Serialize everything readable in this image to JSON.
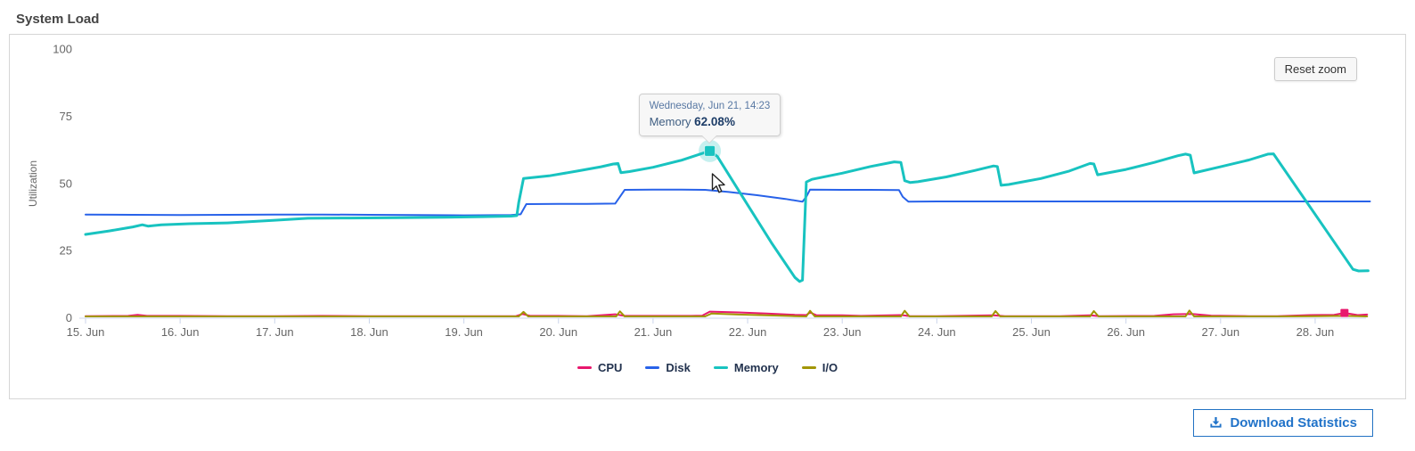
{
  "page_title": "System Load",
  "buttons": {
    "reset_zoom": "Reset zoom",
    "download": "Download Statistics"
  },
  "chart_data": {
    "type": "line",
    "title": "System Load",
    "xlabel": "",
    "ylabel": "Utilization",
    "ylim": [
      0,
      100
    ],
    "y_ticks": [
      0,
      25,
      50,
      75,
      100
    ],
    "x_tick_days": [
      15,
      16,
      17,
      18,
      19,
      20,
      21,
      22,
      23,
      24,
      25,
      26,
      27,
      28
    ],
    "x_tick_labels": [
      "15. Jun",
      "16. Jun",
      "17. Jun",
      "18. Jun",
      "19. Jun",
      "20. Jun",
      "21. Jun",
      "22. Jun",
      "23. Jun",
      "24. Jun",
      "25. Jun",
      "26. Jun",
      "27. Jun",
      "28. Jun"
    ],
    "grid": false,
    "legend_position": "bottom",
    "series": [
      {
        "name": "CPU",
        "color": "#e8186d",
        "points": [
          [
            15.0,
            0.6
          ],
          [
            15.45,
            0.7
          ],
          [
            15.55,
            1.1
          ],
          [
            15.65,
            0.7
          ],
          [
            16.0,
            0.7
          ],
          [
            16.5,
            0.6
          ],
          [
            17.0,
            0.6
          ],
          [
            17.5,
            0.7
          ],
          [
            18.0,
            0.6
          ],
          [
            18.6,
            0.6
          ],
          [
            19.0,
            0.6
          ],
          [
            19.55,
            0.6
          ],
          [
            19.62,
            1.4
          ],
          [
            19.7,
            0.7
          ],
          [
            20.0,
            0.7
          ],
          [
            20.3,
            0.6
          ],
          [
            20.6,
            1.3
          ],
          [
            20.7,
            0.7
          ],
          [
            21.0,
            0.7
          ],
          [
            21.4,
            0.7
          ],
          [
            21.52,
            0.8
          ],
          [
            21.6,
            2.3
          ],
          [
            21.9,
            2.0
          ],
          [
            22.2,
            1.6
          ],
          [
            22.5,
            1.1
          ],
          [
            22.62,
            1.0
          ],
          [
            22.66,
            2.0
          ],
          [
            22.73,
            0.9
          ],
          [
            23.0,
            0.9
          ],
          [
            23.2,
            0.7
          ],
          [
            23.62,
            1.0
          ],
          [
            23.72,
            0.6
          ],
          [
            24.0,
            0.6
          ],
          [
            24.6,
            0.9
          ],
          [
            24.72,
            0.6
          ],
          [
            25.3,
            0.6
          ],
          [
            25.62,
            0.9
          ],
          [
            25.72,
            0.6
          ],
          [
            26.3,
            0.7
          ],
          [
            26.5,
            1.3
          ],
          [
            26.7,
            1.4
          ],
          [
            26.9,
            0.8
          ],
          [
            27.3,
            0.6
          ],
          [
            27.6,
            0.6
          ],
          [
            27.95,
            1.0
          ],
          [
            28.2,
            1.1
          ],
          [
            28.31,
            1.8
          ],
          [
            28.45,
            1.0
          ],
          [
            28.55,
            1.2
          ]
        ]
      },
      {
        "name": "Disk",
        "color": "#2862e9",
        "points": [
          [
            15.0,
            38.4
          ],
          [
            15.5,
            38.3
          ],
          [
            16.0,
            38.2
          ],
          [
            16.5,
            38.3
          ],
          [
            17.0,
            38.4
          ],
          [
            17.5,
            38.4
          ],
          [
            18.0,
            38.3
          ],
          [
            18.5,
            38.2
          ],
          [
            19.0,
            38.1
          ],
          [
            19.5,
            38.2
          ],
          [
            19.6,
            38.5
          ],
          [
            19.66,
            42.3
          ],
          [
            20.0,
            42.4
          ],
          [
            20.3,
            42.4
          ],
          [
            20.6,
            42.5
          ],
          [
            20.65,
            45.0
          ],
          [
            20.7,
            47.6
          ],
          [
            21.0,
            47.7
          ],
          [
            21.3,
            47.7
          ],
          [
            21.55,
            47.6
          ],
          [
            21.8,
            46.8
          ],
          [
            22.1,
            45.6
          ],
          [
            22.4,
            44.2
          ],
          [
            22.58,
            43.2
          ],
          [
            22.62,
            45.0
          ],
          [
            22.66,
            47.7
          ],
          [
            23.0,
            47.6
          ],
          [
            23.3,
            47.6
          ],
          [
            23.6,
            47.5
          ],
          [
            23.64,
            45.0
          ],
          [
            23.7,
            43.2
          ],
          [
            24.0,
            43.3
          ],
          [
            24.5,
            43.3
          ],
          [
            25.0,
            43.3
          ],
          [
            25.5,
            43.3
          ],
          [
            26.0,
            43.3
          ],
          [
            26.5,
            43.3
          ],
          [
            27.0,
            43.3
          ],
          [
            27.5,
            43.3
          ],
          [
            28.0,
            43.3
          ],
          [
            28.3,
            43.3
          ],
          [
            28.58,
            43.3
          ]
        ]
      },
      {
        "name": "Memory",
        "color": "#18c3c0",
        "points": [
          [
            15.0,
            31.0
          ],
          [
            15.25,
            32.3
          ],
          [
            15.5,
            33.8
          ],
          [
            15.6,
            34.6
          ],
          [
            15.66,
            34.1
          ],
          [
            15.8,
            34.6
          ],
          [
            16.1,
            35.0
          ],
          [
            16.5,
            35.3
          ],
          [
            17.0,
            36.3
          ],
          [
            17.35,
            37.0
          ],
          [
            17.8,
            37.1
          ],
          [
            18.3,
            37.2
          ],
          [
            18.8,
            37.4
          ],
          [
            19.2,
            37.6
          ],
          [
            19.5,
            37.8
          ],
          [
            19.56,
            38.0
          ],
          [
            19.58,
            43.0
          ],
          [
            19.63,
            51.8
          ],
          [
            19.9,
            52.8
          ],
          [
            20.2,
            54.6
          ],
          [
            20.45,
            56.2
          ],
          [
            20.58,
            57.2
          ],
          [
            20.63,
            57.4
          ],
          [
            20.66,
            54.0
          ],
          [
            20.75,
            54.4
          ],
          [
            21.0,
            56.0
          ],
          [
            21.3,
            58.6
          ],
          [
            21.6,
            62.08
          ],
          [
            21.68,
            60.0
          ],
          [
            22.0,
            42.0
          ],
          [
            22.25,
            28.0
          ],
          [
            22.5,
            15.0
          ],
          [
            22.55,
            13.5
          ],
          [
            22.58,
            14.0
          ],
          [
            22.62,
            50.5
          ],
          [
            22.68,
            51.5
          ],
          [
            23.0,
            53.8
          ],
          [
            23.3,
            56.3
          ],
          [
            23.55,
            58.0
          ],
          [
            23.62,
            57.8
          ],
          [
            23.66,
            51.0
          ],
          [
            23.72,
            50.3
          ],
          [
            23.8,
            50.6
          ],
          [
            24.1,
            52.4
          ],
          [
            24.4,
            54.8
          ],
          [
            24.6,
            56.5
          ],
          [
            24.64,
            56.3
          ],
          [
            24.68,
            49.3
          ],
          [
            24.76,
            49.6
          ],
          [
            25.1,
            51.8
          ],
          [
            25.4,
            54.6
          ],
          [
            25.62,
            57.4
          ],
          [
            25.66,
            57.2
          ],
          [
            25.7,
            53.2
          ],
          [
            26.0,
            55.2
          ],
          [
            26.3,
            57.8
          ],
          [
            26.55,
            60.3
          ],
          [
            26.63,
            60.9
          ],
          [
            26.68,
            60.5
          ],
          [
            26.72,
            53.9
          ],
          [
            27.0,
            56.2
          ],
          [
            27.3,
            58.7
          ],
          [
            27.5,
            60.9
          ],
          [
            27.56,
            61.0
          ],
          [
            28.4,
            18.0
          ],
          [
            28.46,
            17.4
          ],
          [
            28.56,
            17.5
          ]
        ]
      },
      {
        "name": "I/O",
        "color": "#a29604",
        "points": [
          [
            15.0,
            0.5
          ],
          [
            16.0,
            0.5
          ],
          [
            17.0,
            0.5
          ],
          [
            18.0,
            0.5
          ],
          [
            19.0,
            0.5
          ],
          [
            19.58,
            0.5
          ],
          [
            19.63,
            2.2
          ],
          [
            19.68,
            0.5
          ],
          [
            20.3,
            0.5
          ],
          [
            20.61,
            0.5
          ],
          [
            20.65,
            2.4
          ],
          [
            20.7,
            0.5
          ],
          [
            21.2,
            0.5
          ],
          [
            21.55,
            0.5
          ],
          [
            21.62,
            1.6
          ],
          [
            21.9,
            1.2
          ],
          [
            22.2,
            0.9
          ],
          [
            22.5,
            0.6
          ],
          [
            22.62,
            0.5
          ],
          [
            22.66,
            2.6
          ],
          [
            22.71,
            0.5
          ],
          [
            23.3,
            0.5
          ],
          [
            23.62,
            0.5
          ],
          [
            23.66,
            2.6
          ],
          [
            23.71,
            0.5
          ],
          [
            24.3,
            0.5
          ],
          [
            24.58,
            0.5
          ],
          [
            24.62,
            2.5
          ],
          [
            24.67,
            0.5
          ],
          [
            25.3,
            0.5
          ],
          [
            25.62,
            0.5
          ],
          [
            25.66,
            2.5
          ],
          [
            25.71,
            0.5
          ],
          [
            26.3,
            0.5
          ],
          [
            26.63,
            0.5
          ],
          [
            26.67,
            2.7
          ],
          [
            26.72,
            0.5
          ],
          [
            27.2,
            0.5
          ],
          [
            27.6,
            0.5
          ],
          [
            28.0,
            0.6
          ],
          [
            28.3,
            0.7
          ],
          [
            28.55,
            0.5
          ]
        ]
      }
    ],
    "tooltip": {
      "header": "Wednesday, Jun 21, 14:23",
      "series": "Memory",
      "value": "62.08%",
      "day": 21.6,
      "y": 62.08
    },
    "cpu_end_marker": {
      "day": 28.31,
      "value": 1.8
    }
  }
}
